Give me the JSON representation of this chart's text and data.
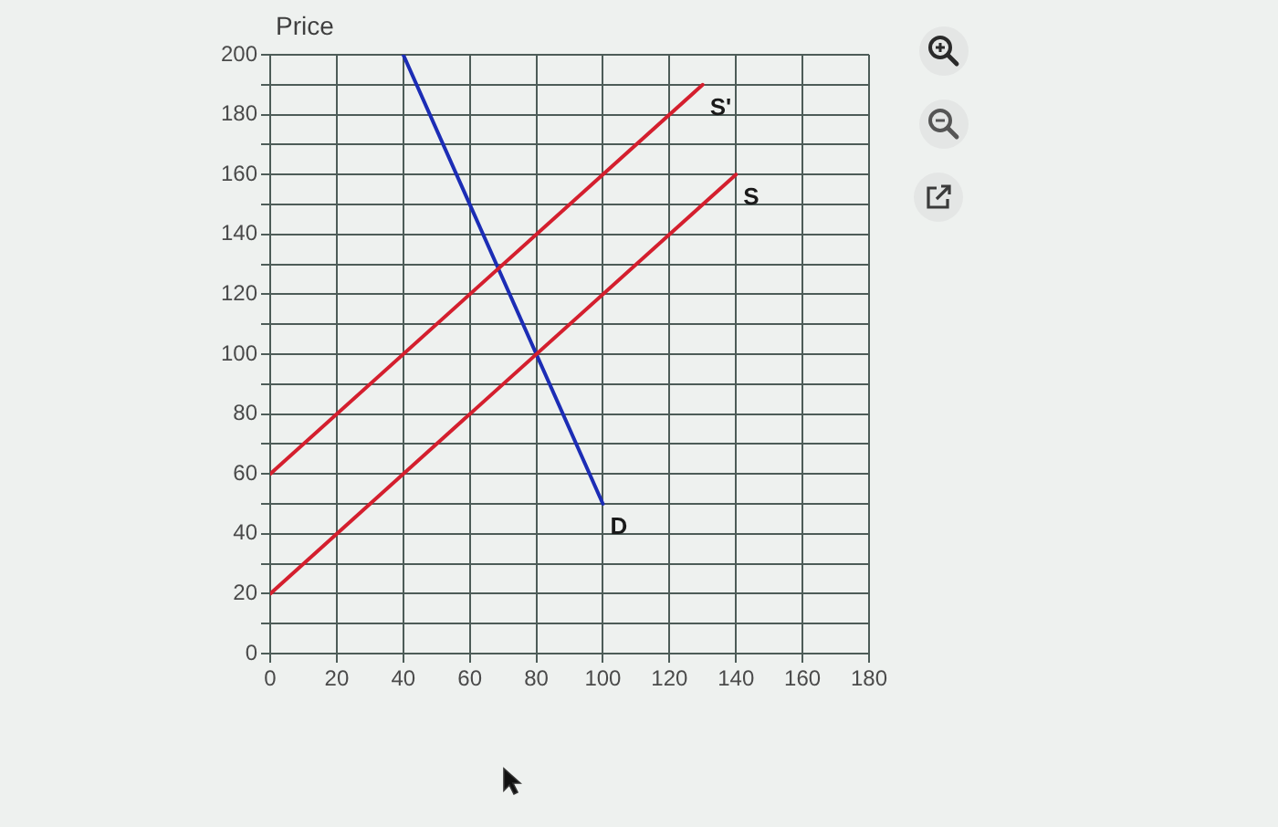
{
  "chart_data": {
    "type": "line",
    "ylabel": "Price",
    "xlim": [
      0,
      180
    ],
    "xticks": [
      0,
      20,
      40,
      60,
      80,
      100,
      120,
      140,
      160,
      180
    ],
    "ylim": [
      0,
      200
    ],
    "yticks": [
      0,
      {
        "value": 10,
        "label": null
      },
      20,
      {
        "value": 30,
        "label": null
      },
      40,
      {
        "value": 50,
        "label": null
      },
      60,
      {
        "value": 70,
        "label": null
      },
      80,
      {
        "value": 90,
        "label": null
      },
      100,
      {
        "value": 110,
        "label": null
      },
      120,
      {
        "value": 130,
        "label": null
      },
      140,
      {
        "value": 150,
        "label": null
      },
      160,
      {
        "value": 170,
        "label": null
      },
      180,
      {
        "value": 190,
        "label": null
      },
      200
    ],
    "grid": true,
    "legend": false,
    "marker": "none",
    "line_style": "solid",
    "series": [
      {
        "name": "S'",
        "color": "#d41f2e",
        "x": [
          0,
          130
        ],
        "values": [
          60,
          190
        ]
      },
      {
        "name": "S",
        "color": "#d41f2e",
        "x": [
          0,
          140
        ],
        "values": [
          20,
          160
        ]
      },
      {
        "name": "D",
        "color": "#1c2db5",
        "x": [
          40,
          100
        ],
        "values": [
          200,
          50
        ]
      }
    ]
  }
}
